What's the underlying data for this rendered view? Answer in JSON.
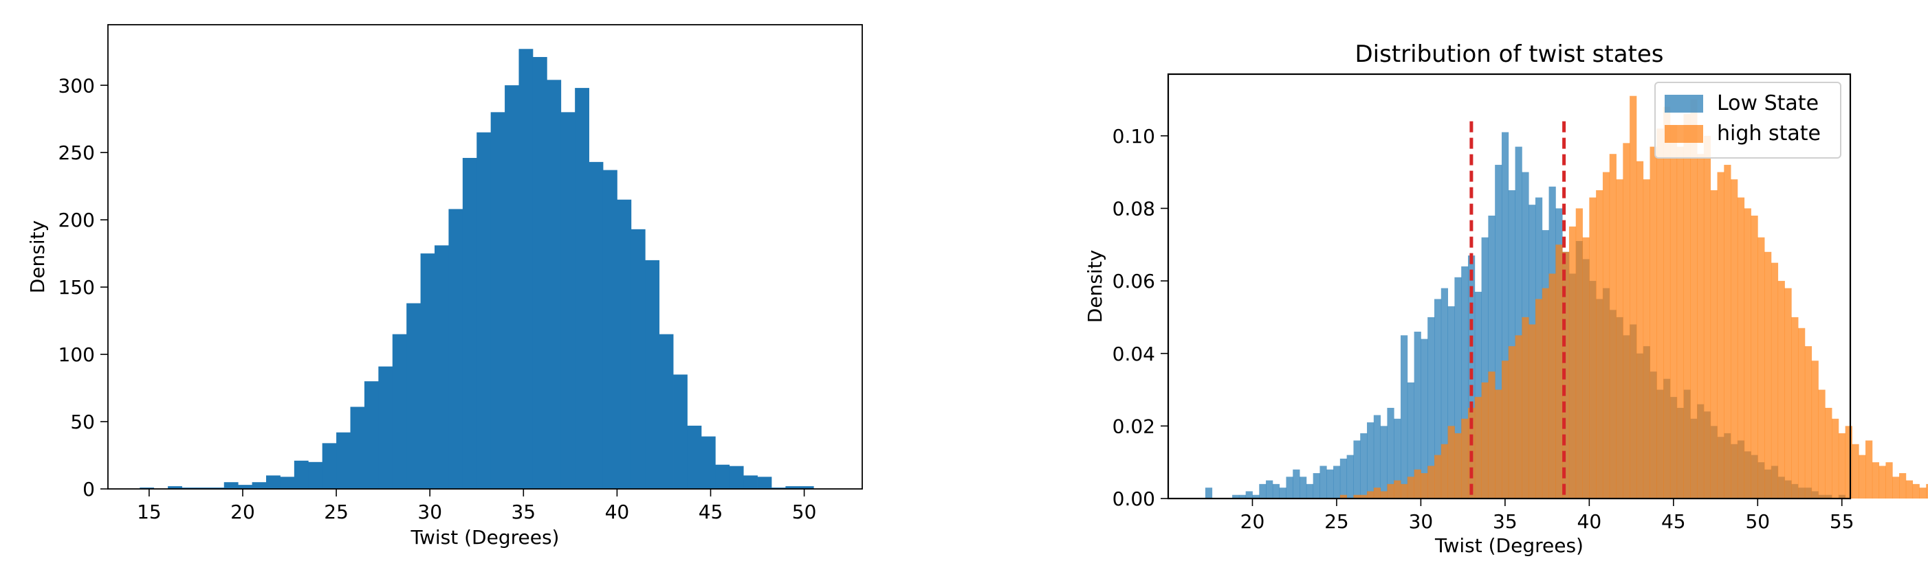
{
  "chart_data": [
    {
      "type": "bar",
      "title": "",
      "xlabel": "Twist (Degrees)",
      "ylabel": "Density",
      "xlim": [
        12.8,
        53.1
      ],
      "ylim": [
        0,
        345
      ],
      "grid": false,
      "legend": "none",
      "color": "#1f77b4",
      "xticks": [
        15,
        20,
        25,
        30,
        35,
        40,
        45,
        50
      ],
      "yticks": [
        0,
        50,
        100,
        150,
        200,
        250,
        300
      ],
      "bin_edges": [
        14.5,
        15.25,
        16.0,
        16.75,
        17.5,
        18.25,
        19.0,
        19.75,
        20.5,
        21.25,
        22.0,
        22.75,
        23.5,
        24.25,
        25.0,
        25.75,
        26.5,
        27.25,
        28.0,
        28.75,
        29.5,
        30.25,
        31.0,
        31.75,
        32.5,
        33.25,
        34.0,
        34.75,
        35.5,
        36.25,
        37.0,
        37.75,
        38.5,
        39.25,
        40.0,
        40.75,
        41.5,
        42.25,
        43.0,
        43.75,
        44.5,
        45.25,
        46.0,
        46.75,
        47.5,
        48.25,
        49.0,
        49.75,
        50.5,
        51.25,
        52.0
      ],
      "values": [
        1,
        0,
        2,
        1,
        1,
        1,
        5,
        3,
        5,
        10,
        9,
        21,
        20,
        34,
        42,
        61,
        80,
        91,
        115,
        138,
        175,
        181,
        208,
        246,
        265,
        280,
        300,
        327,
        321,
        304,
        280,
        298,
        243,
        237,
        215,
        193,
        170,
        115,
        85,
        47,
        39,
        18,
        17,
        10,
        9,
        1,
        2,
        2,
        0,
        0
      ]
    },
    {
      "type": "bar",
      "title": "Distribution of twist states",
      "xlabel": "Twist (Degrees)",
      "ylabel": "Density",
      "xlim": [
        15.0,
        55.5
      ],
      "ylim": [
        0,
        0.117
      ],
      "grid": false,
      "legend": "top-right",
      "xticks": [
        20,
        25,
        30,
        35,
        40,
        45,
        50,
        55
      ],
      "yticks": [
        0.0,
        0.02,
        0.04,
        0.06,
        0.08,
        0.1
      ],
      "bin_width": 0.4,
      "series": [
        {
          "name": "Low State",
          "color": "#1f77b4",
          "alpha": 0.7,
          "bin_start": 17.2,
          "values": [
            0.003,
            0,
            0,
            0,
            0.001,
            0.001,
            0.002,
            0.001,
            0.004,
            0.005,
            0.004,
            0.003,
            0.006,
            0.008,
            0.006,
            0.004,
            0.007,
            0.009,
            0.008,
            0.009,
            0.011,
            0.012,
            0.016,
            0.018,
            0.021,
            0.023,
            0.02,
            0.025,
            0.022,
            0.045,
            0.032,
            0.046,
            0.044,
            0.05,
            0.055,
            0.058,
            0.053,
            0.061,
            0.064,
            0.067,
            0.057,
            0.072,
            0.078,
            0.092,
            0.101,
            0.085,
            0.097,
            0.09,
            0.081,
            0.083,
            0.074,
            0.086,
            0.08,
            0.068,
            0.062,
            0.071,
            0.066,
            0.06,
            0.055,
            0.058,
            0.052,
            0.05,
            0.045,
            0.048,
            0.04,
            0.042,
            0.035,
            0.03,
            0.033,
            0.028,
            0.025,
            0.03,
            0.022,
            0.026,
            0.024,
            0.02,
            0.017,
            0.018,
            0.015,
            0.016,
            0.013,
            0.012,
            0.01,
            0.008,
            0.009,
            0.006,
            0.005,
            0.004,
            0.003,
            0.003,
            0.002,
            0.001,
            0.001,
            0,
            0.001
          ]
        },
        {
          "name": "high state",
          "color": "#ff7f0e",
          "alpha": 0.7,
          "bin_start": 25.2,
          "values": [
            0.001,
            0,
            0.001,
            0.001,
            0.002,
            0.003,
            0.002,
            0.004,
            0.005,
            0.004,
            0.006,
            0.008,
            0.007,
            0.009,
            0.012,
            0.015,
            0.02,
            0.018,
            0.022,
            0.025,
            0.028,
            0.032,
            0.035,
            0.03,
            0.038,
            0.042,
            0.045,
            0.05,
            0.048,
            0.055,
            0.058,
            0.062,
            0.07,
            0.068,
            0.075,
            0.08,
            0.072,
            0.083,
            0.085,
            0.09,
            0.095,
            0.088,
            0.098,
            0.111,
            0.093,
            0.088,
            0.097,
            0.102,
            0.108,
            0.103,
            0.097,
            0.106,
            0.11,
            0.095,
            0.1,
            0.085,
            0.09,
            0.092,
            0.088,
            0.083,
            0.08,
            0.078,
            0.072,
            0.068,
            0.065,
            0.06,
            0.058,
            0.05,
            0.047,
            0.042,
            0.038,
            0.03,
            0.025,
            0.022,
            0.018,
            0.02,
            0.015,
            0.012,
            0.016,
            0.01,
            0.009,
            0.01,
            0.006,
            0.007,
            0.005,
            0.004,
            0.003,
            0.004,
            0.002,
            0.003,
            0.001,
            0.002,
            0.001,
            0.001,
            0,
            0.001,
            0,
            0.001,
            0,
            0.001,
            0,
            0,
            0,
            0.001
          ]
        }
      ],
      "vlines": [
        {
          "x": 33.0,
          "color": "#d62728",
          "style": "dashed"
        },
        {
          "x": 38.5,
          "color": "#d62728",
          "style": "dashed"
        }
      ]
    }
  ]
}
